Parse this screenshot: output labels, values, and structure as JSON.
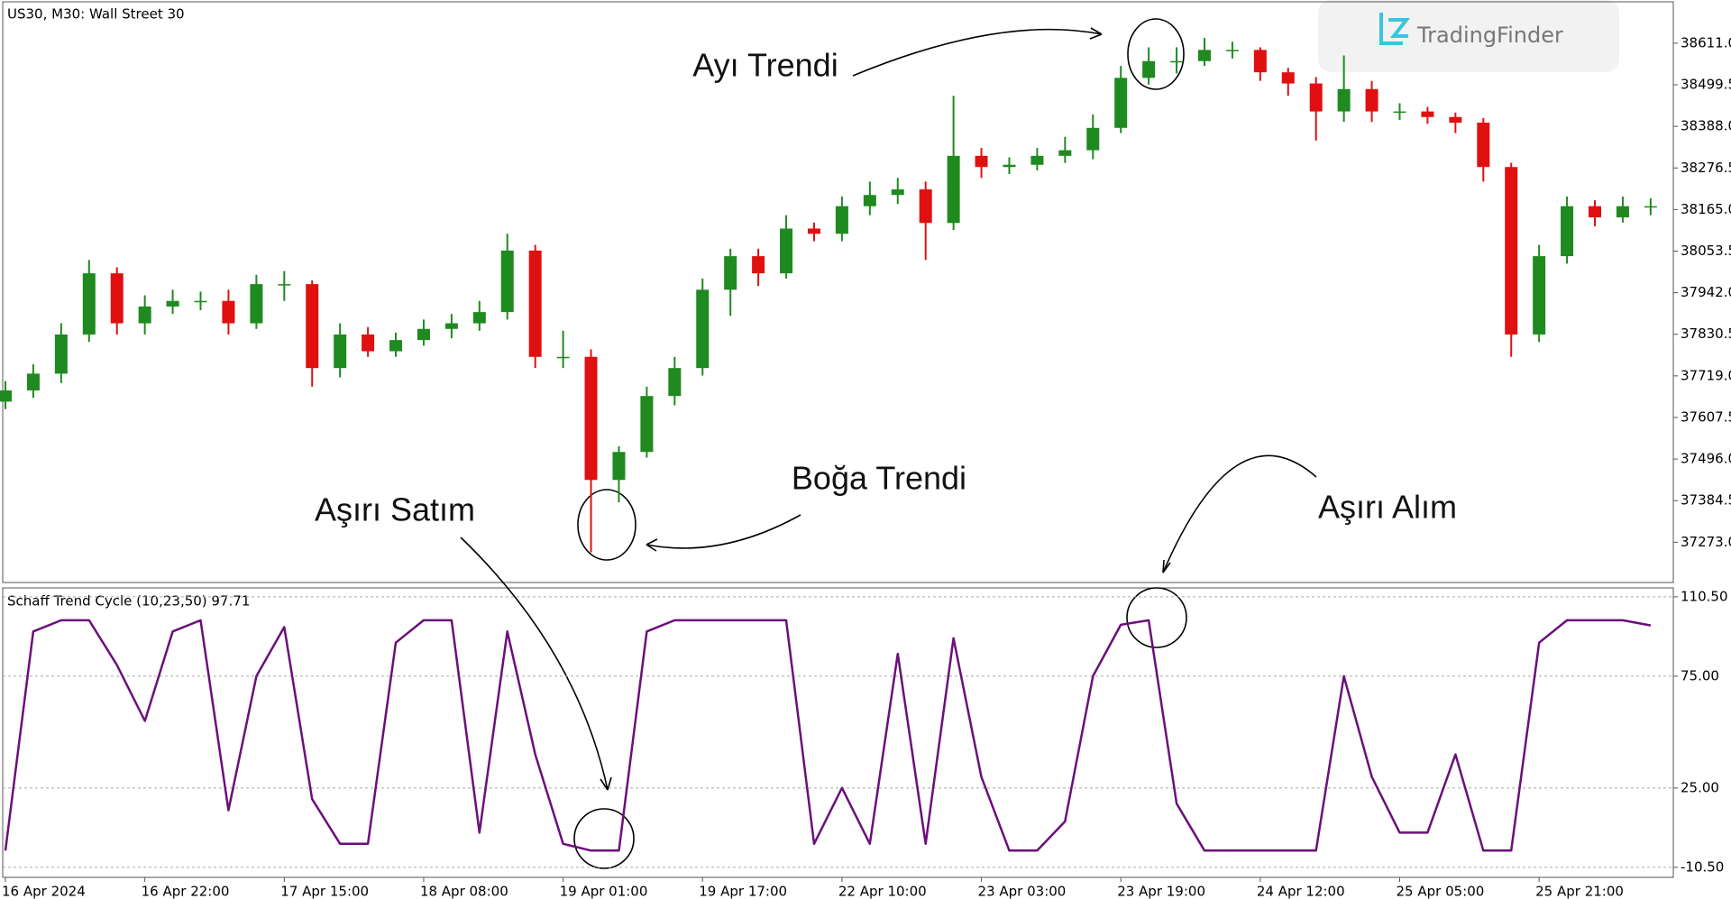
{
  "chart_data": [
    {
      "type": "candlestick",
      "title": "US30, M30:  Wall Street 30",
      "categories": [
        "16 Apr 2024",
        null,
        null,
        null,
        null,
        "16 Apr 22:00",
        null,
        null,
        null,
        null,
        "17 Apr 15:00",
        null,
        null,
        null,
        null,
        "18 Apr 08:00",
        null,
        null,
        null,
        null,
        "19 Apr 01:00",
        null,
        null,
        null,
        null,
        "19 Apr 17:00",
        null,
        null,
        null,
        null,
        "22 Apr 10:00",
        null,
        null,
        null,
        null,
        "23 Apr 03:00",
        null,
        null,
        null,
        null,
        "23 Apr 19:00",
        null,
        null,
        null,
        null,
        "24 Apr 12:00",
        null,
        null,
        null,
        null,
        "25 Apr 05:00",
        null,
        null,
        null,
        null,
        "25 Apr 21:00",
        null,
        null,
        null,
        null
      ],
      "open": [
        37650,
        37680,
        37725,
        37830,
        37994,
        37860,
        37905,
        37920,
        37920,
        37860,
        37965,
        37965,
        37740,
        37830,
        37785,
        37815,
        37845,
        37860,
        37890,
        38055,
        37770,
        37770,
        37440,
        37515,
        37665,
        37740,
        37950,
        38040,
        37994,
        38114,
        38100,
        38174,
        38204,
        38219,
        38129,
        38309,
        38279,
        38285,
        38309,
        38324,
        38384,
        38518,
        38563,
        38563,
        38593,
        38593,
        38533,
        38503,
        38428,
        38488,
        38428,
        38428,
        38413,
        38398,
        38279,
        37830,
        38040,
        38174,
        38144,
        38174
      ],
      "high": [
        37705,
        37750,
        37860,
        38030,
        38010,
        37935,
        37950,
        37945,
        37950,
        37990,
        38000,
        37975,
        37860,
        37850,
        37835,
        37870,
        37885,
        37920,
        38100,
        38070,
        37840,
        37790,
        37530,
        37690,
        37770,
        37980,
        38060,
        38060,
        38150,
        38130,
        38200,
        38240,
        38250,
        38240,
        38470,
        38330,
        38305,
        38330,
        38360,
        38420,
        38550,
        38600,
        38600,
        38625,
        38615,
        38600,
        38545,
        38520,
        38578,
        38510,
        38450,
        38440,
        38425,
        38410,
        38290,
        38070,
        38200,
        38190,
        38200,
        38195
      ],
      "low": [
        37630,
        37660,
        37700,
        37810,
        37830,
        37830,
        37885,
        37895,
        37830,
        37845,
        37920,
        37690,
        37715,
        37770,
        37770,
        37800,
        37820,
        37840,
        37870,
        37740,
        37740,
        37246,
        37380,
        37500,
        37640,
        37720,
        37880,
        37960,
        37980,
        38080,
        38080,
        38150,
        38180,
        38030,
        38110,
        38250,
        38260,
        38270,
        38290,
        38300,
        38370,
        38500,
        38530,
        38550,
        38570,
        38510,
        38470,
        38350,
        38400,
        38400,
        38405,
        38395,
        38370,
        38240,
        37770,
        37810,
        38020,
        38120,
        38130,
        38150
      ],
      "close": [
        37680,
        37725,
        37830,
        37994,
        37860,
        37905,
        37920,
        37920,
        37860,
        37965,
        37965,
        37740,
        37830,
        37785,
        37815,
        37845,
        37860,
        37890,
        38055,
        37770,
        37770,
        37440,
        37515,
        37665,
        37740,
        37950,
        38040,
        37994,
        38114,
        38100,
        38174,
        38204,
        38219,
        38129,
        38309,
        38279,
        38285,
        38309,
        38324,
        38384,
        38518,
        38563,
        38563,
        38593,
        38593,
        38533,
        38503,
        38428,
        38488,
        38428,
        38428,
        38413,
        38398,
        38279,
        37830,
        38040,
        38174,
        38144,
        38174,
        38174
      ],
      "up_color": "#1f8a1f",
      "down_color": "#e01010",
      "ylim": [
        37165,
        38722
      ],
      "yticks": [
        {
          "value": 38611,
          "label": "38611.0"
        },
        38499.5,
        {
          "value": 38388,
          "label": "38388.0"
        },
        38276.5,
        {
          "value": 38165,
          "label": "38165.0"
        },
        38053.5,
        {
          "value": 37942,
          "label": "37942.0"
        },
        37830.5,
        {
          "value": 37719,
          "label": "37719.0"
        },
        37607.5,
        {
          "value": 37496,
          "label": "37496.0"
        },
        37384.5,
        {
          "value": 37273,
          "label": "37273.0"
        }
      ],
      "annotations": [
        "Ayı Trendi",
        "Boğa Trendi",
        "Aşırı Satım",
        "Aşırı Alım"
      ]
    },
    {
      "type": "line",
      "title": "Schaff Trend Cycle (10,23,50) 97.71",
      "values": [
        -3,
        95,
        100,
        100,
        80,
        55,
        95,
        100,
        15,
        75,
        97,
        20,
        0,
        0,
        90,
        100,
        100,
        5,
        95,
        40,
        0,
        -3,
        -3,
        95,
        100,
        100,
        100,
        100,
        100,
        0,
        25,
        0,
        85,
        0,
        92,
        30,
        -3,
        -3,
        10,
        75,
        98,
        100,
        18,
        -3,
        -3,
        -3,
        -3,
        -3,
        75,
        30,
        5,
        5,
        40,
        -3,
        -3,
        90,
        100,
        100,
        100,
        97.71
      ],
      "color": "#6b0f7a",
      "ylim": [
        -15,
        114.5
      ],
      "yticks": [
        {
          "value": 110.5,
          "label": "110.50"
        },
        {
          "value": 75,
          "label": "75.00"
        },
        {
          "value": 25,
          "label": "25.00"
        },
        {
          "value": -10.5,
          "label": "-10.50"
        }
      ],
      "grid": true
    },
    {
      "logo": "TradingFinder"
    }
  ]
}
